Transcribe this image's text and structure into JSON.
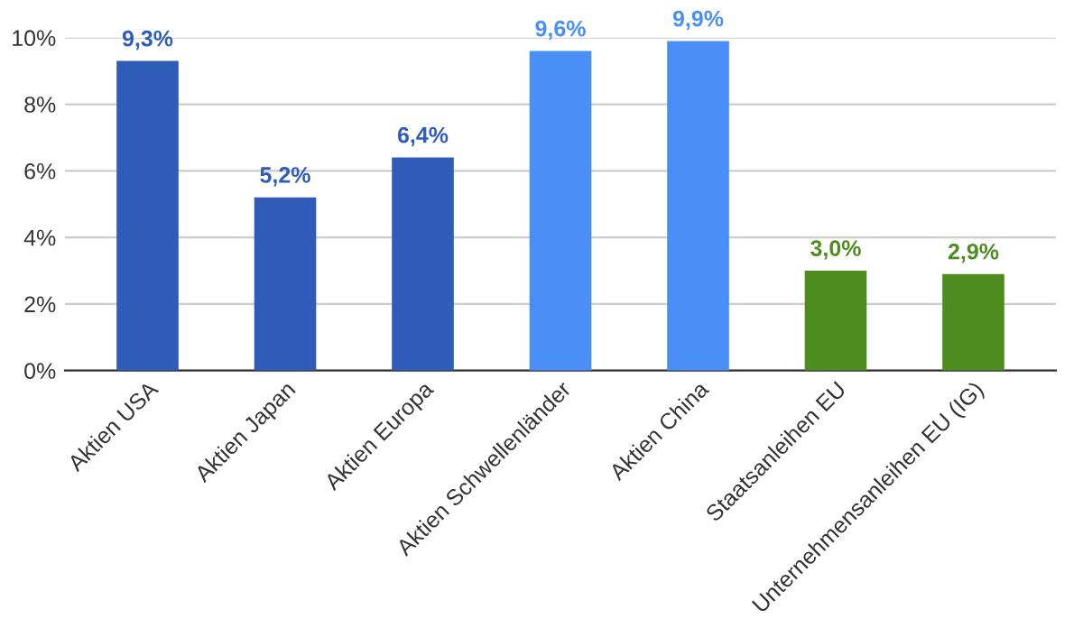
{
  "chart_data": {
    "type": "bar",
    "categories": [
      "Aktien USA",
      "Aktien Japan",
      "Aktien Europa",
      "Aktien Schwellenländer",
      "Aktien China",
      "Staatsanleihen EU",
      "Unternehmensanleihen EU (IG)"
    ],
    "values": [
      9.3,
      5.2,
      6.4,
      9.6,
      9.9,
      3.0,
      2.9
    ],
    "colors": [
      "#2e5cb8",
      "#2e5cb8",
      "#2e5cb8",
      "#4a8ff7",
      "#4a8ff7",
      "#4e8c1f",
      "#4e8c1f"
    ],
    "value_labels": [
      "9,3%",
      "5,2%",
      "6,4%",
      "9,6%",
      "9,9%",
      "3,0%",
      "2,9%"
    ],
    "ylim": [
      0,
      10
    ],
    "yticks": [
      {
        "value": 0,
        "label": "0%"
      },
      {
        "value": 2,
        "label": "2%"
      },
      {
        "value": 4,
        "label": "4%"
      },
      {
        "value": 6,
        "label": "6%"
      },
      {
        "value": 8,
        "label": "8%"
      },
      {
        "value": 10,
        "label": "10%"
      }
    ],
    "grid": "y",
    "legend": false
  }
}
